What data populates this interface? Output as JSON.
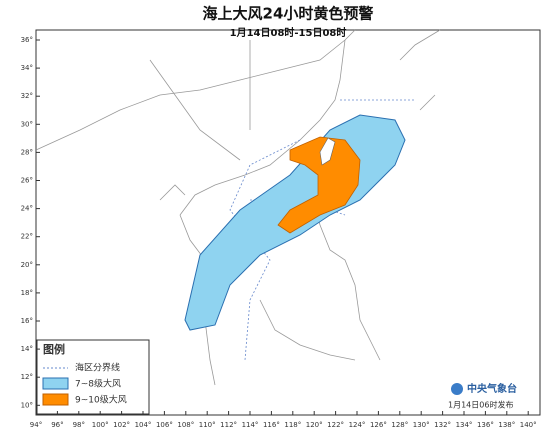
{
  "header": {
    "title": "海上大风24小时黄色预警",
    "subtitle": "1月14日08时-15日08时"
  },
  "axes": {
    "lat_labels": [
      "36°",
      "34°",
      "32°",
      "30°",
      "28°",
      "26°",
      "24°",
      "22°",
      "20°",
      "18°",
      "16°",
      "14°",
      "12°",
      "10°"
    ],
    "lon_labels": [
      "94°",
      "96°",
      "98°",
      "100°",
      "102°",
      "104°",
      "106°",
      "108°",
      "110°",
      "112°",
      "114°",
      "116°",
      "118°",
      "120°",
      "122°",
      "124°",
      "126°",
      "128°",
      "130°",
      "132°",
      "134°",
      "136°",
      "138°",
      "140°"
    ]
  },
  "legend": {
    "title": "图例",
    "items": [
      "海区分界线",
      "7~8级大风",
      "9~10级大风"
    ]
  },
  "footer": {
    "agency": "中央气象台",
    "issued": "1月14日06时发布"
  }
}
